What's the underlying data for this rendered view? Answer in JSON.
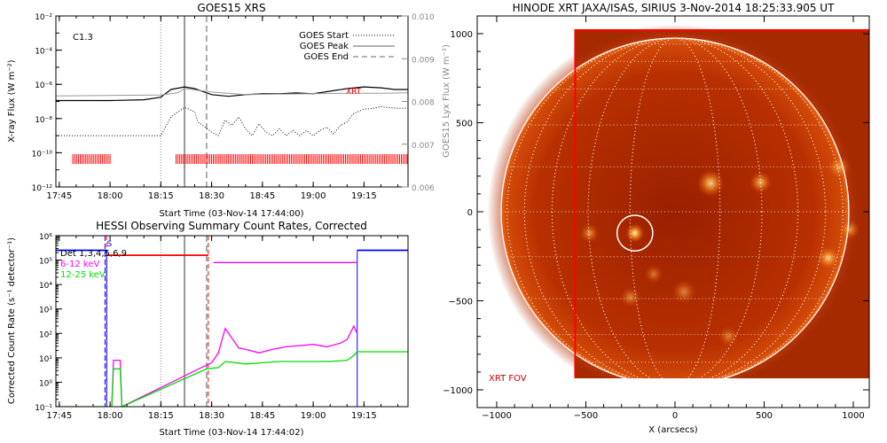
{
  "chart_data": [
    {
      "type": "line",
      "title": "GOES15 XRS",
      "xlabel": "Start Time (03-Nov-14 17:44:00)",
      "ylabel": "X-ray Flux (W m⁻²)",
      "y2label": "GOES15 Lyx Flux (W m⁻²)",
      "x_ticks": [
        "17:45",
        "18:00",
        "18:15",
        "18:30",
        "18:45",
        "19:00",
        "19:15"
      ],
      "x_tick_minutes": [
        45,
        60,
        75,
        90,
        105,
        120,
        135
      ],
      "xlim_minutes": [
        44,
        148
      ],
      "ylim_log10": [
        -12,
        -2
      ],
      "y_ticks": [
        "10⁻¹²",
        "10⁻¹⁰",
        "10⁻⁸",
        "10⁻⁶",
        "10⁻⁴",
        "10⁻²"
      ],
      "y_tick_exponents": [
        -12,
        -10,
        -8,
        -6,
        -4,
        -2
      ],
      "y2_ticks": [
        "0.006",
        "0.007",
        "0.008",
        "0.009",
        "0.010"
      ],
      "y2lim": [
        0.006,
        0.01
      ],
      "flare_class": "C1.3",
      "legend": [
        {
          "label": "GOES Start",
          "style": "dotted"
        },
        {
          "label": "GOES Peak",
          "style": "solid"
        },
        {
          "label": "GOES End",
          "style": "dashed"
        }
      ],
      "legend_position": "top-right",
      "vlines_minutes": {
        "start": 75,
        "peak": 82,
        "end": 88.5
      },
      "xrt_label": "XRT",
      "colors": {
        "long": "#000000",
        "short": "#000000",
        "lyx": "#999999",
        "xrt": "#ff0000",
        "start": "#888888",
        "peak": "#999999",
        "end": "#999999"
      },
      "series": [
        {
          "name": "long",
          "style": "solid",
          "x": [
            44,
            60,
            70,
            75,
            78,
            82,
            85,
            90,
            95,
            100,
            105,
            110,
            115,
            120,
            125,
            130,
            135,
            140,
            144,
            148
          ],
          "y_log10": [
            -6.95,
            -6.95,
            -6.9,
            -6.75,
            -6.3,
            -6.15,
            -6.25,
            -6.6,
            -6.7,
            -6.6,
            -6.55,
            -6.55,
            -6.5,
            -6.55,
            -6.4,
            -6.25,
            -6.15,
            -6.2,
            -6.3,
            -6.3
          ]
        },
        {
          "name": "short",
          "style": "dotted",
          "x": [
            44,
            60,
            70,
            75,
            78,
            82,
            85,
            86,
            88,
            90,
            92,
            94,
            96,
            98,
            100,
            102,
            104,
            106,
            108,
            110,
            112,
            114,
            116,
            118,
            120,
            122,
            124,
            126,
            128,
            130,
            132,
            135,
            138,
            140,
            142,
            145,
            148
          ],
          "y_log10": [
            -9.0,
            -9.0,
            -9.0,
            -9.0,
            -7.9,
            -7.35,
            -7.6,
            -8.2,
            -8.5,
            -8.8,
            -9.0,
            -8.1,
            -8.4,
            -7.9,
            -8.6,
            -9.0,
            -8.3,
            -8.8,
            -9.0,
            -8.6,
            -9.0,
            -8.7,
            -9.0,
            -8.7,
            -9.0,
            -8.7,
            -8.5,
            -8.9,
            -8.4,
            -8.2,
            -7.7,
            -7.45,
            -7.4,
            -7.3,
            -7.35,
            -7.4,
            -7.4
          ]
        },
        {
          "name": "lyx",
          "axis": "y2",
          "style": "solid",
          "x": [
            44,
            60,
            75,
            80,
            82,
            90,
            100,
            110,
            120,
            130,
            140,
            148
          ],
          "y": [
            0.00813,
            0.00814,
            0.00815,
            0.0082,
            0.0083,
            0.00822,
            0.00816,
            0.00817,
            0.00818,
            0.00819,
            0.00819,
            0.0082
          ]
        }
      ],
      "xrt_coverage_minutes": [
        [
          49,
          60
        ],
        [
          79.5,
          148
        ]
      ]
    },
    {
      "type": "line",
      "title": "HESSI Observing Summary Count Rates, Corrected",
      "xlabel": "Start Time (03-Nov-14 17:44:02)",
      "ylabel": "Corrected Count Rate (s⁻¹ detector⁻¹)",
      "x_ticks": [
        "17:45",
        "18:00",
        "18:15",
        "18:30",
        "18:45",
        "19:00",
        "19:15"
      ],
      "x_tick_minutes": [
        45,
        60,
        75,
        90,
        105,
        120,
        135
      ],
      "xlim_minutes": [
        44,
        148
      ],
      "ylim_log10": [
        -1,
        6
      ],
      "y_ticks": [
        "10⁻¹",
        "10⁰",
        "10¹",
        "10²",
        "10³",
        "10⁴",
        "10⁵",
        "10⁶"
      ],
      "y_tick_exponents": [
        -1,
        0,
        1,
        2,
        3,
        4,
        5,
        6
      ],
      "legend": [
        {
          "label": "Det 1,3,4,5,6,9",
          "color": "#000000"
        },
        {
          "label": "6-12 keV",
          "color": "#ff00ff"
        },
        {
          "label": "12-25 keV",
          "color": "#00dd00"
        }
      ],
      "legend_position": "top-left",
      "flags": [
        {
          "label": "S",
          "x_minutes": 58.5
        }
      ],
      "vlines_minutes": {
        "start": 75,
        "peak": 82,
        "end": 88.5
      },
      "attenuator_dashes": {
        "color": "#ff0000",
        "x_minutes": [
          59,
          89
        ]
      },
      "colors": {
        "night": "#0000ff",
        "saa": "#0000ff",
        "atten": "#ff0000",
        "low": "#ff00ff",
        "high": "#00dd00",
        "start": "#888888",
        "peak": "#999999",
        "end": "#999999"
      },
      "series": [
        {
          "name": "night",
          "color": "#0000ff",
          "x": [
            44,
            59
          ],
          "y_log10": [
            5.4,
            5.4
          ]
        },
        {
          "name": "night",
          "color": "#0000ff",
          "x": [
            133,
            148
          ],
          "y_log10": [
            5.4,
            5.4
          ]
        },
        {
          "name": "atten",
          "color": "#ff0000",
          "x": [
            59,
            89
          ],
          "y_log10": [
            5.2,
            5.2
          ]
        },
        {
          "name": "low",
          "color": "#ff00ff",
          "x": [
            90.5,
            133
          ],
          "y_log10": [
            4.9,
            4.9
          ]
        },
        {
          "name": "low",
          "color": "#ff00ff",
          "x": [
            60.5,
            61,
            63,
            63.5,
            88.5,
            90,
            92,
            94,
            96,
            98,
            100,
            104,
            108,
            112,
            116,
            120,
            124,
            128,
            130,
            132,
            133
          ],
          "y_log10": [
            -1,
            0.9,
            0.9,
            -1,
            0.7,
            0.8,
            1.2,
            2.2,
            1.8,
            1.4,
            1.35,
            1.2,
            1.35,
            1.45,
            1.5,
            1.55,
            1.45,
            1.6,
            1.75,
            2.3,
            2.0
          ]
        },
        {
          "name": "high",
          "color": "#00dd00",
          "x": [
            44,
            60.5,
            61,
            63,
            63.5,
            88.5,
            92,
            94,
            100,
            105,
            110,
            115,
            120,
            125,
            130,
            132,
            133,
            148
          ],
          "y_log10": [
            -1,
            -1,
            0.55,
            0.55,
            -1,
            0.55,
            0.6,
            0.85,
            0.75,
            0.8,
            0.85,
            0.85,
            0.85,
            0.85,
            0.9,
            1.1,
            1.25,
            1.25
          ]
        }
      ]
    },
    {
      "type": "heatmap",
      "title": "HINODE XRT JAXA/ISAS, SIRIUS   3-Nov-2014 18:25:33.905 UT",
      "xlabel": "X (arcsecs)",
      "ylabel": "",
      "x_ticks": [
        "−1000",
        "−500",
        "0",
        "500",
        "1000"
      ],
      "x_tick_values": [
        -1000,
        -500,
        0,
        500,
        1000
      ],
      "y_ticks": [
        "−1000",
        "−500",
        "0",
        "500",
        "1000"
      ],
      "y_tick_values": [
        -1000,
        -500,
        0,
        500,
        1000
      ],
      "xlim": [
        -1100,
        1100
      ],
      "ylim": [
        -1000,
        1020
      ],
      "fov_x": [
        -560,
        1100
      ],
      "fov_y": [
        -940,
        1020
      ],
      "fov_label": "XRT FOV",
      "solar_radius_arcsec": 975,
      "flare_circle": {
        "x": -225,
        "y": -120,
        "r": 100
      },
      "colors": {
        "disk": "#b82a00",
        "limb": "#ffffff",
        "fov": "#ff0000",
        "grid": "#ffffff"
      },
      "bright_regions": [
        {
          "x": -225,
          "y": -120,
          "r": 55,
          "intensity": 1.0
        },
        {
          "x": 200,
          "y": 160,
          "r": 80,
          "intensity": 0.8
        },
        {
          "x": 480,
          "y": 165,
          "r": 65,
          "intensity": 0.7
        },
        {
          "x": 860,
          "y": -260,
          "r": 70,
          "intensity": 0.75
        },
        {
          "x": -480,
          "y": -120,
          "r": 55,
          "intensity": 0.55
        },
        {
          "x": 980,
          "y": -100,
          "r": 60,
          "intensity": 0.55
        },
        {
          "x": 920,
          "y": 250,
          "r": 70,
          "intensity": 0.5
        },
        {
          "x": 50,
          "y": -450,
          "r": 70,
          "intensity": 0.45
        },
        {
          "x": -250,
          "y": -480,
          "r": 60,
          "intensity": 0.45
        },
        {
          "x": -120,
          "y": -350,
          "r": 55,
          "intensity": 0.4
        },
        {
          "x": 300,
          "y": -700,
          "r": 60,
          "intensity": 0.4
        }
      ]
    }
  ]
}
